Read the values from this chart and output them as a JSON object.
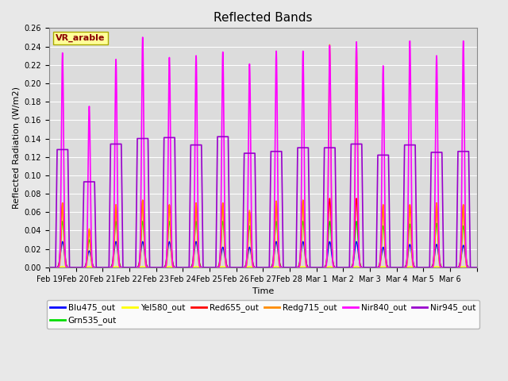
{
  "title": "Reflected Bands",
  "xlabel": "Time",
  "ylabel": "Reflected Radiation (W/m2)",
  "ylim": [
    0,
    0.26
  ],
  "annotation_text": "VR_arable",
  "annotation_box_color": "#FFFF99",
  "annotation_text_color": "#8B0000",
  "series_order": [
    "Blu475_out",
    "Grn535_out",
    "Yel580_out",
    "Red655_out",
    "Redg715_out",
    "Nir840_out",
    "Nir945_out"
  ],
  "series": {
    "Blu475_out": {
      "color": "#0000FF",
      "lw": 1.0
    },
    "Grn535_out": {
      "color": "#00DD00",
      "lw": 1.0
    },
    "Yel580_out": {
      "color": "#FFFF00",
      "lw": 1.0
    },
    "Red655_out": {
      "color": "#FF0000",
      "lw": 1.0
    },
    "Redg715_out": {
      "color": "#FF8C00",
      "lw": 1.0
    },
    "Nir840_out": {
      "color": "#FF00FF",
      "lw": 1.2
    },
    "Nir945_out": {
      "color": "#9900CC",
      "lw": 1.2
    }
  },
  "tick_labels": [
    "Feb 19",
    "Feb 20",
    "Feb 21",
    "Feb 22",
    "Feb 23",
    "Feb 24",
    "Feb 25",
    "Feb 26",
    "Feb 27",
    "Feb 28",
    "Mar 1",
    "Mar 2",
    "Mar 3",
    "Mar 4",
    "Mar 5",
    "Mar 6",
    ""
  ],
  "yticks": [
    0.0,
    0.02,
    0.04,
    0.06,
    0.08,
    0.1,
    0.12,
    0.14,
    0.16,
    0.18,
    0.2,
    0.22,
    0.24,
    0.26
  ],
  "n_days": 16,
  "background_color": "#DCDCDC",
  "grid_color": "#FFFFFF",
  "fig_facecolor": "#E8E8E8"
}
